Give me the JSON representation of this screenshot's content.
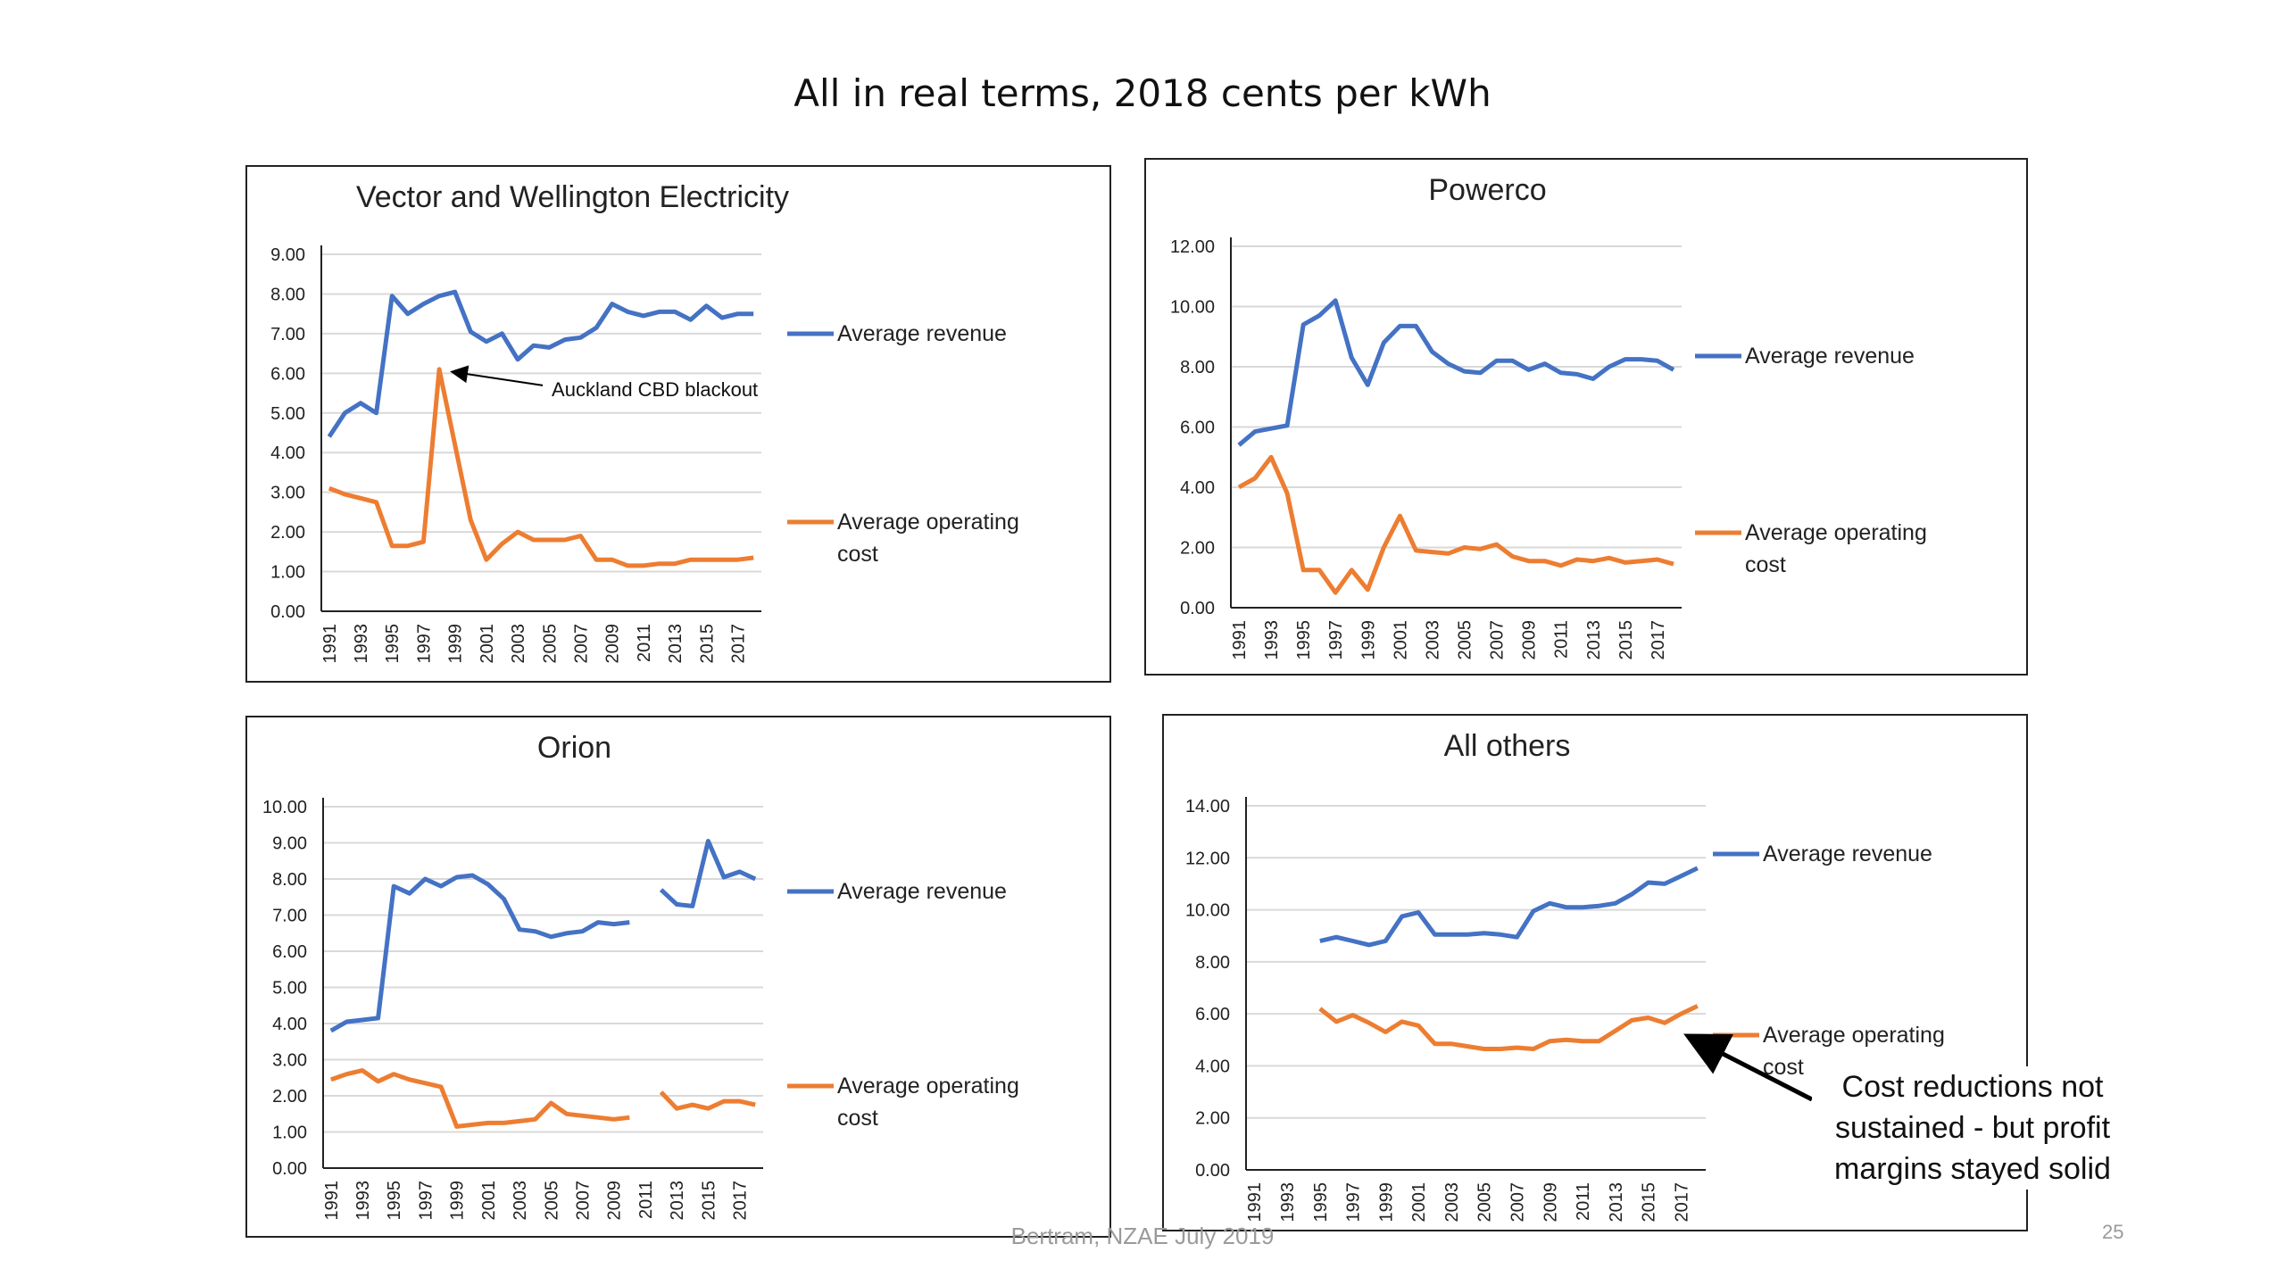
{
  "page_title": "All in real terms, 2018 cents per kWh",
  "footer": "Bertram, NZAE July 2019",
  "page_number": "25",
  "callout_text": "Cost reductions not sustained - but profit margins stayed solid",
  "colors": {
    "revenue": "#4472c4",
    "cost": "#ed7d31",
    "gridline": "#d9d9d9",
    "axis": "#222222"
  },
  "chart_data": [
    {
      "type": "line",
      "title": "Vector and Wellington Electricity",
      "x_tick_labels": [
        "1991",
        "1993",
        "1995",
        "1997",
        "1999",
        "2001",
        "2003",
        "2005",
        "2007",
        "2009",
        "2011",
        "2013",
        "2015",
        "2017"
      ],
      "y_tick_labels": [
        "0.00",
        "1.00",
        "2.00",
        "3.00",
        "4.00",
        "5.00",
        "6.00",
        "7.00",
        "8.00",
        "9.00"
      ],
      "ylim": [
        0,
        9
      ],
      "xlim": [
        1991,
        2018
      ],
      "grid": true,
      "legend_position": "right",
      "series": [
        {
          "name": "Average revenue",
          "color": "#4472c4",
          "x": [
            1991,
            1992,
            1993,
            1994,
            1995,
            1996,
            1997,
            1998,
            1999,
            2000,
            2001,
            2002,
            2003,
            2004,
            2005,
            2006,
            2007,
            2008,
            2009,
            2010,
            2011,
            2012,
            2013,
            2014,
            2015,
            2016,
            2017,
            2018
          ],
          "y": [
            4.4,
            5.0,
            5.25,
            5.0,
            7.95,
            7.5,
            7.75,
            7.95,
            8.05,
            7.05,
            6.8,
            7.0,
            6.35,
            6.7,
            6.65,
            6.85,
            6.9,
            7.15,
            7.75,
            7.55,
            7.45,
            7.55,
            7.55,
            7.35,
            7.7,
            7.4,
            7.5,
            7.5
          ]
        },
        {
          "name": "Average operating cost",
          "color": "#ed7d31",
          "x": [
            1991,
            1992,
            1993,
            1994,
            1995,
            1996,
            1997,
            1998,
            1999,
            2000,
            2001,
            2002,
            2003,
            2004,
            2005,
            2006,
            2007,
            2008,
            2009,
            2010,
            2011,
            2012,
            2013,
            2014,
            2015,
            2016,
            2017,
            2018
          ],
          "y": [
            3.1,
            2.95,
            2.85,
            2.75,
            1.65,
            1.65,
            1.75,
            6.1,
            4.2,
            2.3,
            1.3,
            1.7,
            2.0,
            1.8,
            1.8,
            1.8,
            1.9,
            1.3,
            1.3,
            1.15,
            1.15,
            1.2,
            1.2,
            1.3,
            1.3,
            1.3,
            1.3,
            1.35
          ]
        }
      ],
      "annotation": {
        "text": "Auckland CBD blackout",
        "target_x": 1998,
        "target_y": 6.1
      }
    },
    {
      "type": "line",
      "title": "Powerco",
      "x_tick_labels": [
        "1991",
        "1993",
        "1995",
        "1997",
        "1999",
        "2001",
        "2003",
        "2005",
        "2007",
        "2009",
        "2011",
        "2013",
        "2015",
        "2017"
      ],
      "y_tick_labels": [
        "0.00",
        "2.00",
        "4.00",
        "6.00",
        "8.00",
        "10.00",
        "12.00"
      ],
      "ylim": [
        0,
        12
      ],
      "xlim": [
        1991,
        2018
      ],
      "grid": true,
      "legend_position": "right",
      "series": [
        {
          "name": "Average revenue",
          "color": "#4472c4",
          "x": [
            1991,
            1992,
            1993,
            1994,
            1995,
            1996,
            1997,
            1998,
            1999,
            2000,
            2001,
            2002,
            2003,
            2004,
            2005,
            2006,
            2007,
            2008,
            2009,
            2010,
            2011,
            2012,
            2013,
            2014,
            2015,
            2016,
            2017,
            2018
          ],
          "y": [
            5.4,
            5.85,
            5.95,
            6.05,
            9.4,
            9.7,
            10.2,
            8.3,
            7.4,
            8.8,
            9.35,
            9.35,
            8.5,
            8.1,
            7.85,
            7.8,
            8.2,
            8.2,
            7.9,
            8.1,
            7.8,
            7.75,
            7.6,
            8.0,
            8.25,
            8.25,
            8.2,
            7.9
          ]
        },
        {
          "name": "Average operating cost",
          "color": "#ed7d31",
          "x": [
            1991,
            1992,
            1993,
            1994,
            1995,
            1996,
            1997,
            1998,
            1999,
            2000,
            2001,
            2002,
            2003,
            2004,
            2005,
            2006,
            2007,
            2008,
            2009,
            2010,
            2011,
            2012,
            2013,
            2014,
            2015,
            2016,
            2017,
            2018
          ],
          "y": [
            4.0,
            4.3,
            5.0,
            3.8,
            1.25,
            1.25,
            0.5,
            1.25,
            0.6,
            2.0,
            3.05,
            1.9,
            1.85,
            1.8,
            2.0,
            1.95,
            2.1,
            1.7,
            1.55,
            1.55,
            1.4,
            1.6,
            1.55,
            1.65,
            1.5,
            1.55,
            1.6,
            1.45
          ]
        }
      ]
    },
    {
      "type": "line",
      "title": "Orion",
      "x_tick_labels": [
        "1991",
        "1993",
        "1995",
        "1997",
        "1999",
        "2001",
        "2003",
        "2005",
        "2007",
        "2009",
        "2011",
        "2013",
        "2015",
        "2017"
      ],
      "y_tick_labels": [
        "0.00",
        "1.00",
        "2.00",
        "3.00",
        "4.00",
        "5.00",
        "6.00",
        "7.00",
        "8.00",
        "9.00",
        "10.00"
      ],
      "ylim": [
        0,
        10
      ],
      "xlim": [
        1991,
        2018
      ],
      "grid": true,
      "legend_position": "right",
      "series": [
        {
          "name": "Average revenue",
          "color": "#4472c4",
          "x": [
            1991,
            1992,
            1993,
            1994,
            1995,
            1996,
            1997,
            1998,
            1999,
            2000,
            2001,
            2002,
            2003,
            2004,
            2005,
            2006,
            2007,
            2008,
            2009,
            2010,
            2011,
            2012,
            2013,
            2014,
            2015,
            2016,
            2017,
            2018
          ],
          "y": [
            3.8,
            4.05,
            4.1,
            4.15,
            7.8,
            7.6,
            8.0,
            7.8,
            8.05,
            8.1,
            7.85,
            7.45,
            6.6,
            6.55,
            6.4,
            6.5,
            6.55,
            6.8,
            6.75,
            6.8,
            null,
            7.7,
            7.3,
            7.25,
            9.05,
            8.05,
            8.2,
            8.0
          ]
        },
        {
          "name": "Average operating cost",
          "color": "#ed7d31",
          "x": [
            1991,
            1992,
            1993,
            1994,
            1995,
            1996,
            1997,
            1998,
            1999,
            2000,
            2001,
            2002,
            2003,
            2004,
            2005,
            2006,
            2007,
            2008,
            2009,
            2010,
            2011,
            2012,
            2013,
            2014,
            2015,
            2016,
            2017,
            2018
          ],
          "y": [
            2.45,
            2.6,
            2.7,
            2.4,
            2.6,
            2.45,
            2.35,
            2.25,
            1.15,
            1.2,
            1.25,
            1.25,
            1.3,
            1.35,
            1.8,
            1.5,
            1.45,
            1.4,
            1.35,
            1.4,
            null,
            2.1,
            1.65,
            1.75,
            1.65,
            1.85,
            1.85,
            1.75
          ]
        }
      ]
    },
    {
      "type": "line",
      "title": "All others",
      "x_tick_labels": [
        "1991",
        "1993",
        "1995",
        "1997",
        "1999",
        "2001",
        "2003",
        "2005",
        "2007",
        "2009",
        "2011",
        "2013",
        "2015",
        "2017"
      ],
      "y_tick_labels": [
        "0.00",
        "2.00",
        "4.00",
        "6.00",
        "8.00",
        "10.00",
        "12.00",
        "14.00"
      ],
      "ylim": [
        0,
        14
      ],
      "xlim": [
        1991,
        2018
      ],
      "grid": true,
      "legend_position": "right",
      "series": [
        {
          "name": "Average revenue",
          "color": "#4472c4",
          "x": [
            1995,
            1996,
            1997,
            1998,
            1999,
            2000,
            2001,
            2002,
            2003,
            2004,
            2005,
            2006,
            2007,
            2008,
            2009,
            2010,
            2011,
            2012,
            2013,
            2014,
            2015,
            2016,
            2017,
            2018
          ],
          "y": [
            8.8,
            8.95,
            8.8,
            8.65,
            8.8,
            9.75,
            9.9,
            9.05,
            9.05,
            9.05,
            9.1,
            9.05,
            8.95,
            9.95,
            10.25,
            10.1,
            10.1,
            10.15,
            10.25,
            10.6,
            11.05,
            11.0,
            11.3,
            11.6
          ]
        },
        {
          "name": "Average operating cost",
          "color": "#ed7d31",
          "x": [
            1995,
            1996,
            1997,
            1998,
            1999,
            2000,
            2001,
            2002,
            2003,
            2004,
            2005,
            2006,
            2007,
            2008,
            2009,
            2010,
            2011,
            2012,
            2013,
            2014,
            2015,
            2016,
            2017,
            2018
          ],
          "y": [
            6.2,
            5.7,
            5.95,
            5.65,
            5.3,
            5.7,
            5.55,
            4.85,
            4.85,
            4.75,
            4.65,
            4.65,
            4.7,
            4.65,
            4.95,
            5.0,
            4.95,
            4.95,
            5.35,
            5.75,
            5.85,
            5.65,
            6.0,
            6.3
          ]
        }
      ]
    }
  ]
}
